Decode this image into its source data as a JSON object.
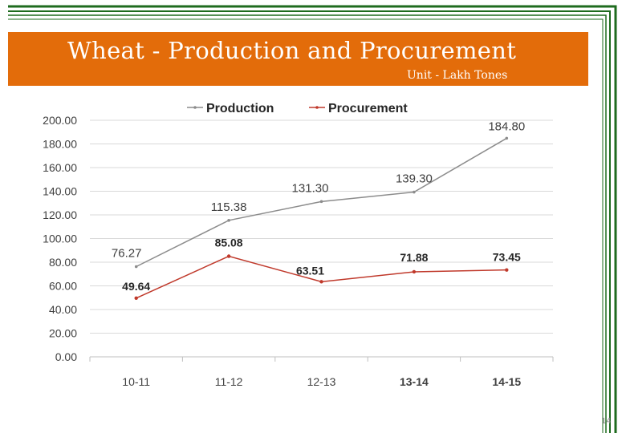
{
  "slide": {
    "title": "Wheat - Production and Procurement",
    "unit": "Unit - Lakh Tones",
    "page_number": "14",
    "colors": {
      "title_bar": "#e36c0a",
      "border_green": "#1e6b1e",
      "production": "#8c8c8c",
      "procurement": "#c0392b"
    }
  },
  "chart_data": {
    "type": "line",
    "categories": [
      "10-11",
      "11-12",
      "12-13",
      "13-14",
      "14-15"
    ],
    "y_tick_labels": [
      "0.00",
      "20.00",
      "40.00",
      "60.00",
      "80.00",
      "100.00",
      "120.00",
      "140.00",
      "160.00",
      "180.00",
      "200.00"
    ],
    "ylim": [
      0,
      200
    ],
    "grid": true,
    "legend_position": "top",
    "series": [
      {
        "name": "Production",
        "values": [
          76.27,
          115.38,
          131.3,
          139.3,
          184.8
        ],
        "labels": [
          "76.27",
          "115.38",
          "131.30",
          "139.30",
          "184.80"
        ]
      },
      {
        "name": "Procurement",
        "values": [
          49.64,
          85.08,
          63.51,
          71.88,
          73.45
        ],
        "labels": [
          "49.64",
          "85.08",
          "63.51",
          "71.88",
          "73.45"
        ]
      }
    ]
  }
}
